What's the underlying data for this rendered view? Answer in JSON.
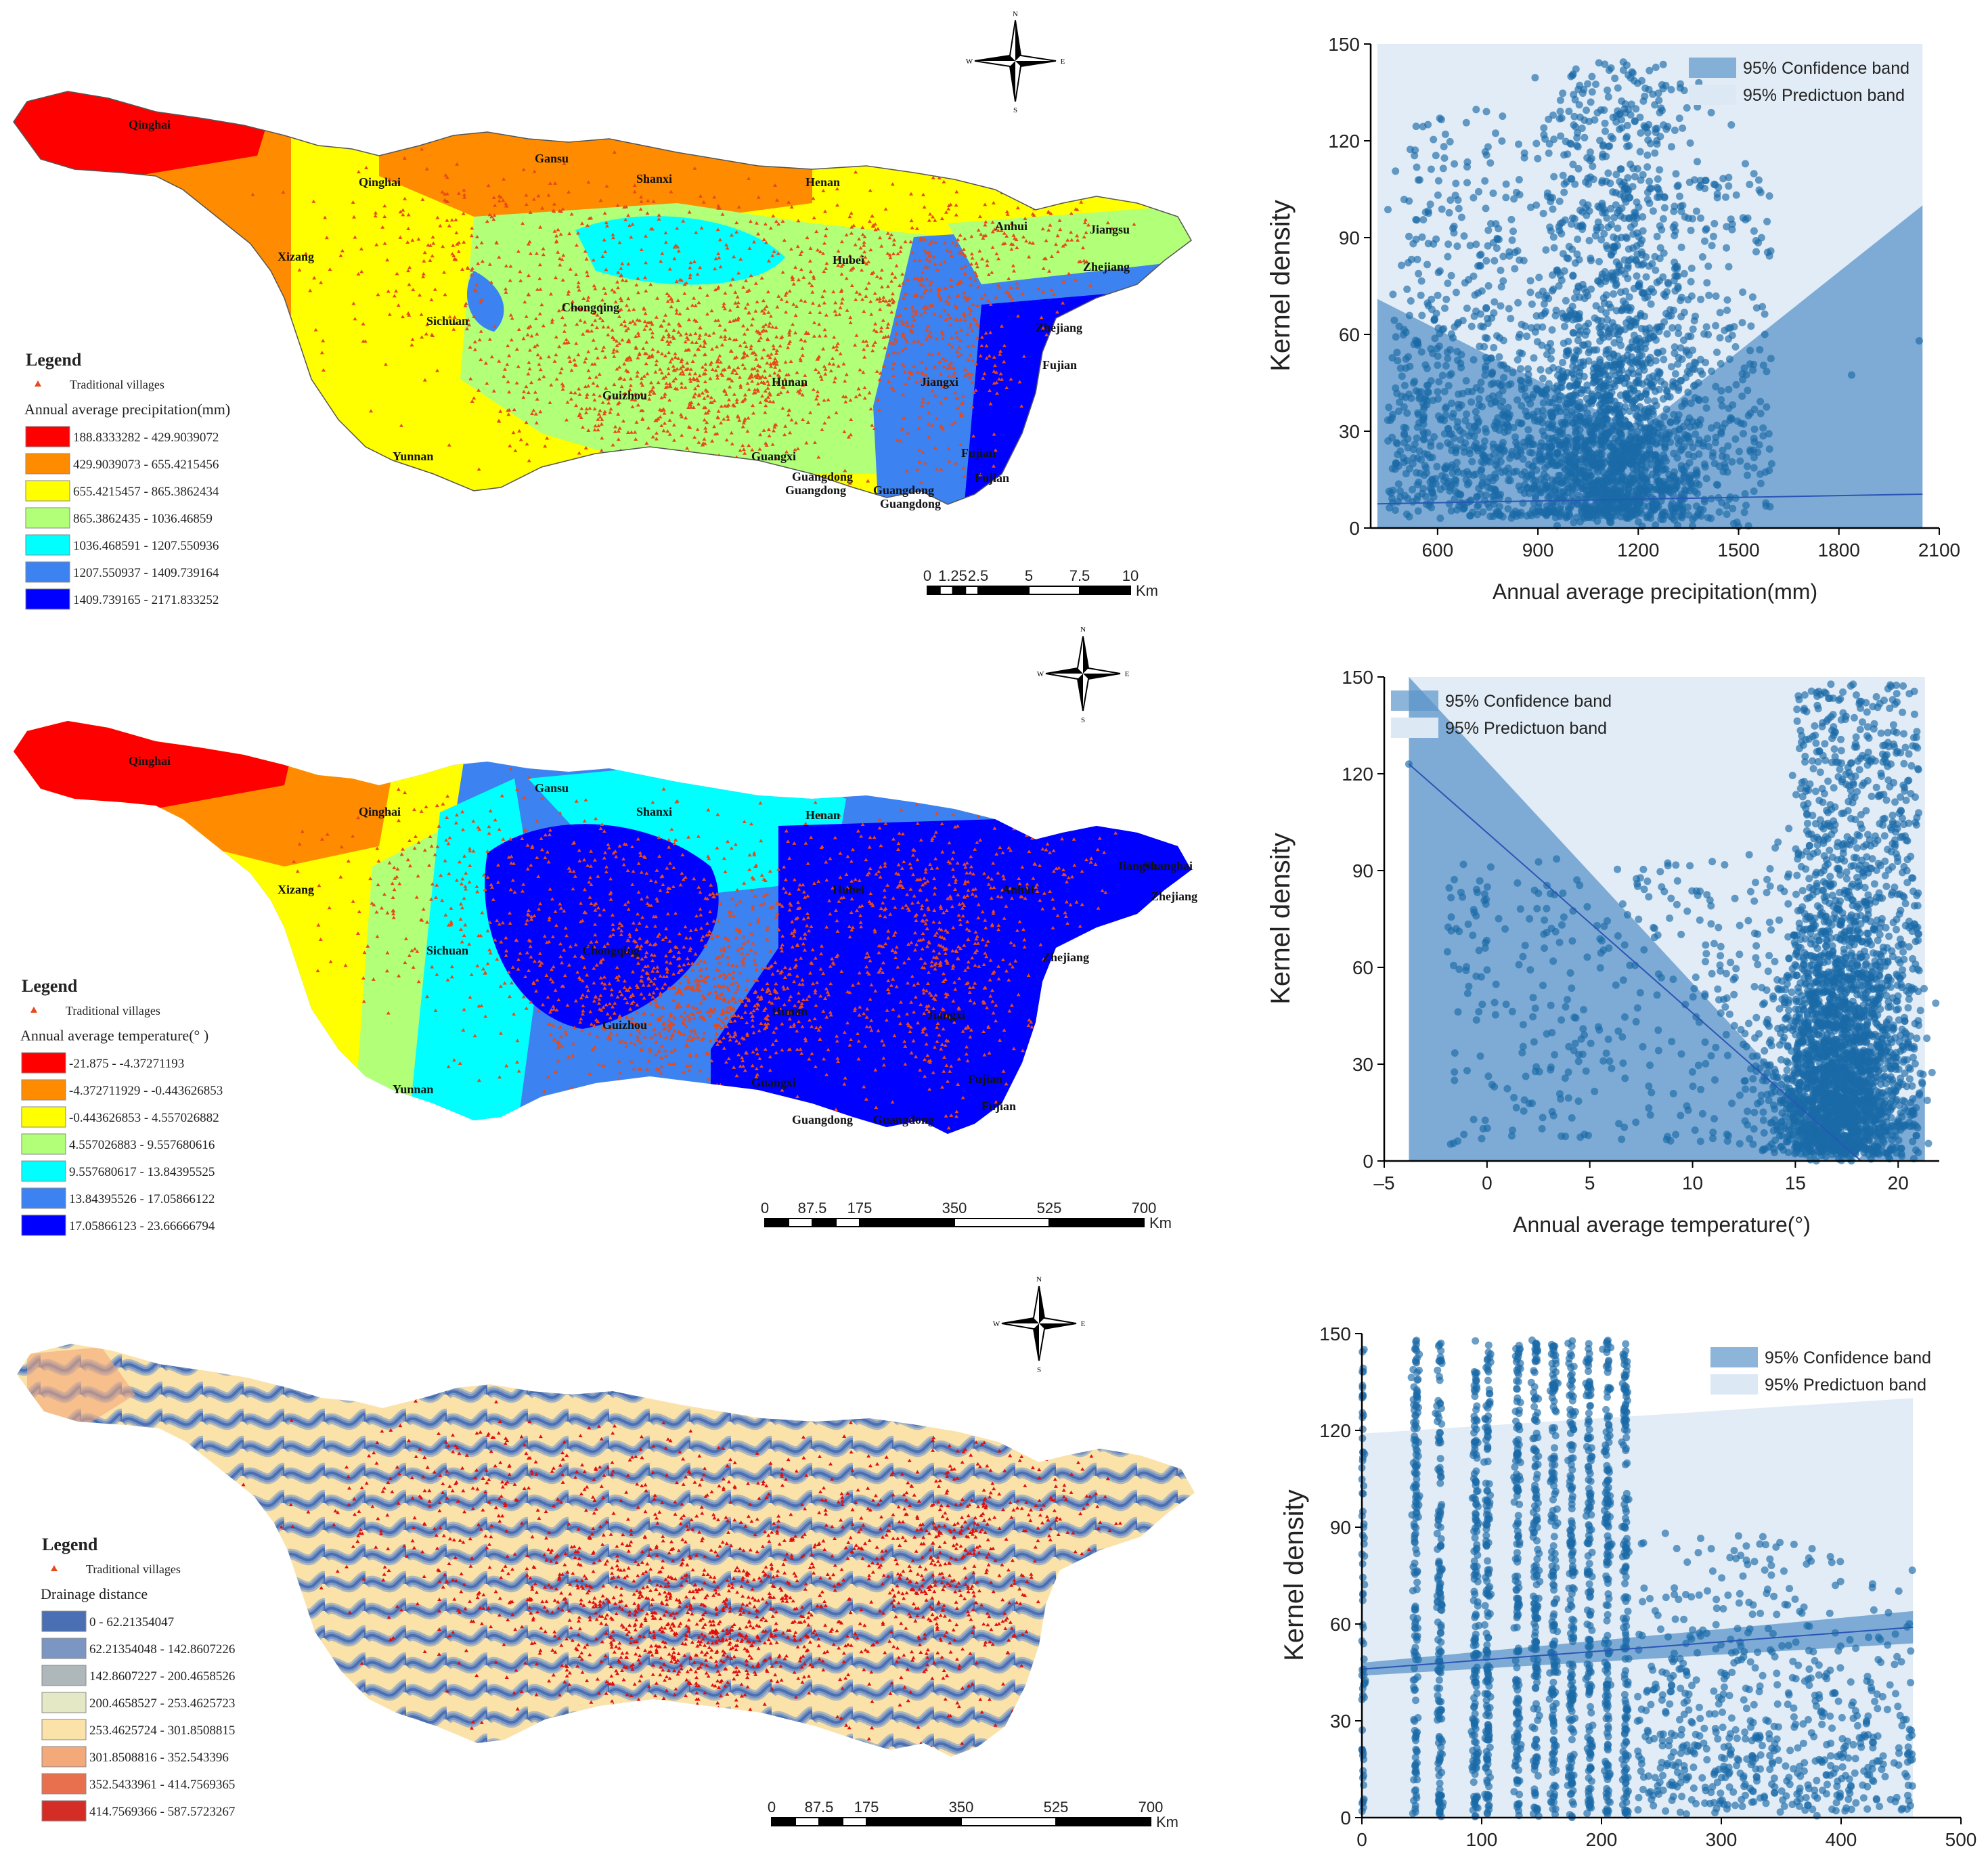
{
  "panels": [
    {
      "id": "precipitation",
      "map": {
        "legend_title": "Legend",
        "points_label": "Traditional villages",
        "variable_title": "Annual average precipitation(mm)",
        "classes": [
          {
            "label": "188.8333282 - 429.9039072",
            "color": "#ff0000"
          },
          {
            "label": "429.9039073 - 655.4215456",
            "color": "#ff8c00"
          },
          {
            "label": "655.4215457 - 865.3862434",
            "color": "#ffff00"
          },
          {
            "label": "865.3862435 - 1036.46859",
            "color": "#b2ff78"
          },
          {
            "label": "1036.468591 - 1207.550936",
            "color": "#00ffff"
          },
          {
            "label": "1207.550937 - 1409.739164",
            "color": "#3c82f0"
          },
          {
            "label": "1409.739165 - 2171.833252",
            "color": "#0000ff"
          }
        ],
        "place_labels": [
          "Qinghai",
          "Gansu",
          "Shanxi",
          "Henan",
          "Qinghai",
          "Xizang",
          "Sichuan",
          "Chongqing",
          "Hubei",
          "Anhui",
          "Jiangsu",
          "Zhejiang",
          "Hunan",
          "Jiangxi",
          "Guizhou",
          "Yunnan",
          "Guangxi",
          "Guangdong",
          "Guangdong",
          "Guangdong",
          "Guangdong",
          "Fujian",
          "Fujian",
          "Zhejiang",
          "Fujian"
        ],
        "scale_ticks": [
          "0",
          "1.25",
          "2.5",
          "5",
          "7.5",
          "10"
        ],
        "scale_unit": "Km",
        "compass": {
          "n": "N",
          "e": "E",
          "s": "S",
          "w": "W"
        }
      },
      "chart_data": {
        "type": "scatter",
        "xlabel": "Annual average precipitation(mm)",
        "ylabel": "Kernel density",
        "xlim": [
          400,
          2100
        ],
        "ylim": [
          0,
          150
        ],
        "xticks": [
          "600",
          "900",
          "1200",
          "1500",
          "1800",
          "2100"
        ],
        "yticks": [
          "0",
          "30",
          "60",
          "90",
          "120",
          "150"
        ],
        "legend": [
          "95% Confidence band",
          "95% Predictuon band"
        ],
        "fit": {
          "x": [
            420,
            2050
          ],
          "y": [
            7.5,
            10.5
          ]
        },
        "confidence_band": {
          "x": [
            420,
            1200,
            2050
          ],
          "upper": [
            71,
            30,
            100
          ],
          "lower": [
            0,
            0,
            0
          ]
        },
        "prediction_band": {
          "x": [
            420,
            2050
          ],
          "upper": [
            150,
            150
          ],
          "lower": [
            0,
            0
          ]
        }
      }
    },
    {
      "id": "temperature",
      "map": {
        "legend_title": "Legend",
        "points_label": "Traditional villages",
        "variable_title": "Annual average temperature(° )",
        "classes": [
          {
            "label": "-21.875 - -4.37271193",
            "color": "#ff0000"
          },
          {
            "label": "-4.372711929 - -0.443626853",
            "color": "#ff8c00"
          },
          {
            "label": "-0.443626853 - 4.557026882",
            "color": "#ffff00"
          },
          {
            "label": "4.557026883 - 9.557680616",
            "color": "#b2ff78"
          },
          {
            "label": "9.557680617 - 13.84395525",
            "color": "#00ffff"
          },
          {
            "label": "13.84395526 - 17.05866122",
            "color": "#3c82f0"
          },
          {
            "label": "17.05866123 - 23.66666794",
            "color": "#0000ff"
          }
        ],
        "place_labels": [
          "Qinghai",
          "Gansu",
          "Shanxi",
          "Henan",
          "Qinghai",
          "Xizang",
          "Sichuan",
          "Chongqing",
          "Hubei",
          "Anhui",
          "Jiangsu",
          "Shanghai",
          "Zhejiang",
          "Hunan",
          "Jiangxi",
          "Guizhou",
          "Yunnan",
          "Guangxi",
          "Guangdong",
          "Guangdong",
          "Fujian",
          "Fujian",
          "Zhejiang"
        ],
        "scale_ticks": [
          "0",
          "87.5",
          "175",
          "350",
          "525",
          "700"
        ],
        "scale_unit": "Km",
        "compass": {
          "n": "N",
          "e": "E",
          "s": "S",
          "w": "W"
        }
      },
      "chart_data": {
        "type": "scatter",
        "xlabel": "Annual average temperature(°)",
        "ylabel": "Kernel density",
        "xlim": [
          -5,
          22
        ],
        "ylim": [
          0,
          150
        ],
        "xticks": [
          "–5",
          "0",
          "5",
          "10",
          "15",
          "20"
        ],
        "yticks": [
          "0",
          "30",
          "60",
          "90",
          "120",
          "150"
        ],
        "legend": [
          "95% Confidence band",
          "95% Predictuon band"
        ],
        "fit": {
          "x": [
            -3.8,
            18.2
          ],
          "y": [
            123,
            0
          ]
        },
        "confidence_band": {
          "x": [
            -3.8,
            18,
            21.3
          ],
          "upper": [
            150,
            0,
            24
          ],
          "lower": [
            0,
            0,
            0
          ]
        },
        "prediction_band": {
          "x": [
            -3.8,
            21.3
          ],
          "upper": [
            150,
            150
          ],
          "lower": [
            0,
            0
          ]
        }
      }
    },
    {
      "id": "drainage",
      "map": {
        "legend_title": "Legend",
        "points_label": "Traditional villages",
        "variable_title": "Drainage distance",
        "classes": [
          {
            "label": "0 - 62.21354047",
            "color": "#4a6fb2"
          },
          {
            "label": "62.21354048 - 142.8607226",
            "color": "#7b96c2"
          },
          {
            "label": "142.8607227 - 200.4658526",
            "color": "#aeb8bb"
          },
          {
            "label": "200.4658527 - 253.4625723",
            "color": "#e5e8c4"
          },
          {
            "label": "253.4625724 - 301.8508815",
            "color": "#fbe2a9"
          },
          {
            "label": "301.8508816 - 352.543396",
            "color": "#f4a97a"
          },
          {
            "label": "352.5433961 - 414.7569365",
            "color": "#e8704e"
          },
          {
            "label": "414.7569366 - 587.5723267",
            "color": "#d42d26"
          }
        ],
        "place_labels": [],
        "scale_ticks": [
          "0",
          "87.5",
          "175",
          "350",
          "525",
          "700"
        ],
        "scale_unit": "Km",
        "compass": {
          "n": "N",
          "e": "E",
          "s": "S",
          "w": "W"
        }
      },
      "chart_data": {
        "type": "scatter",
        "xlabel": "",
        "ylabel": "Kernel density",
        "xlim": [
          0,
          500
        ],
        "ylim": [
          0,
          150
        ],
        "xticks": [
          "0",
          "100",
          "200",
          "300",
          "400",
          "500"
        ],
        "yticks": [
          "0",
          "30",
          "60",
          "90",
          "120",
          "150"
        ],
        "legend": [
          "95% Confidence band",
          "95% Predictuon band"
        ],
        "fit": {
          "x": [
            0,
            460
          ],
          "y": [
            46,
            59
          ]
        },
        "confidence_band": {
          "x": [
            0,
            460
          ],
          "upper": [
            48,
            64
          ],
          "lower": [
            44,
            54
          ]
        },
        "prediction_band": {
          "x": [
            0,
            460
          ],
          "upper": [
            119,
            130
          ],
          "lower": [
            0,
            0
          ]
        }
      }
    }
  ],
  "style": {
    "dot": "#1a6aa8",
    "fit": "#2a55b5",
    "conf": "#5c95c9",
    "pred": "#dce9f5",
    "village": "#e64a1a"
  }
}
